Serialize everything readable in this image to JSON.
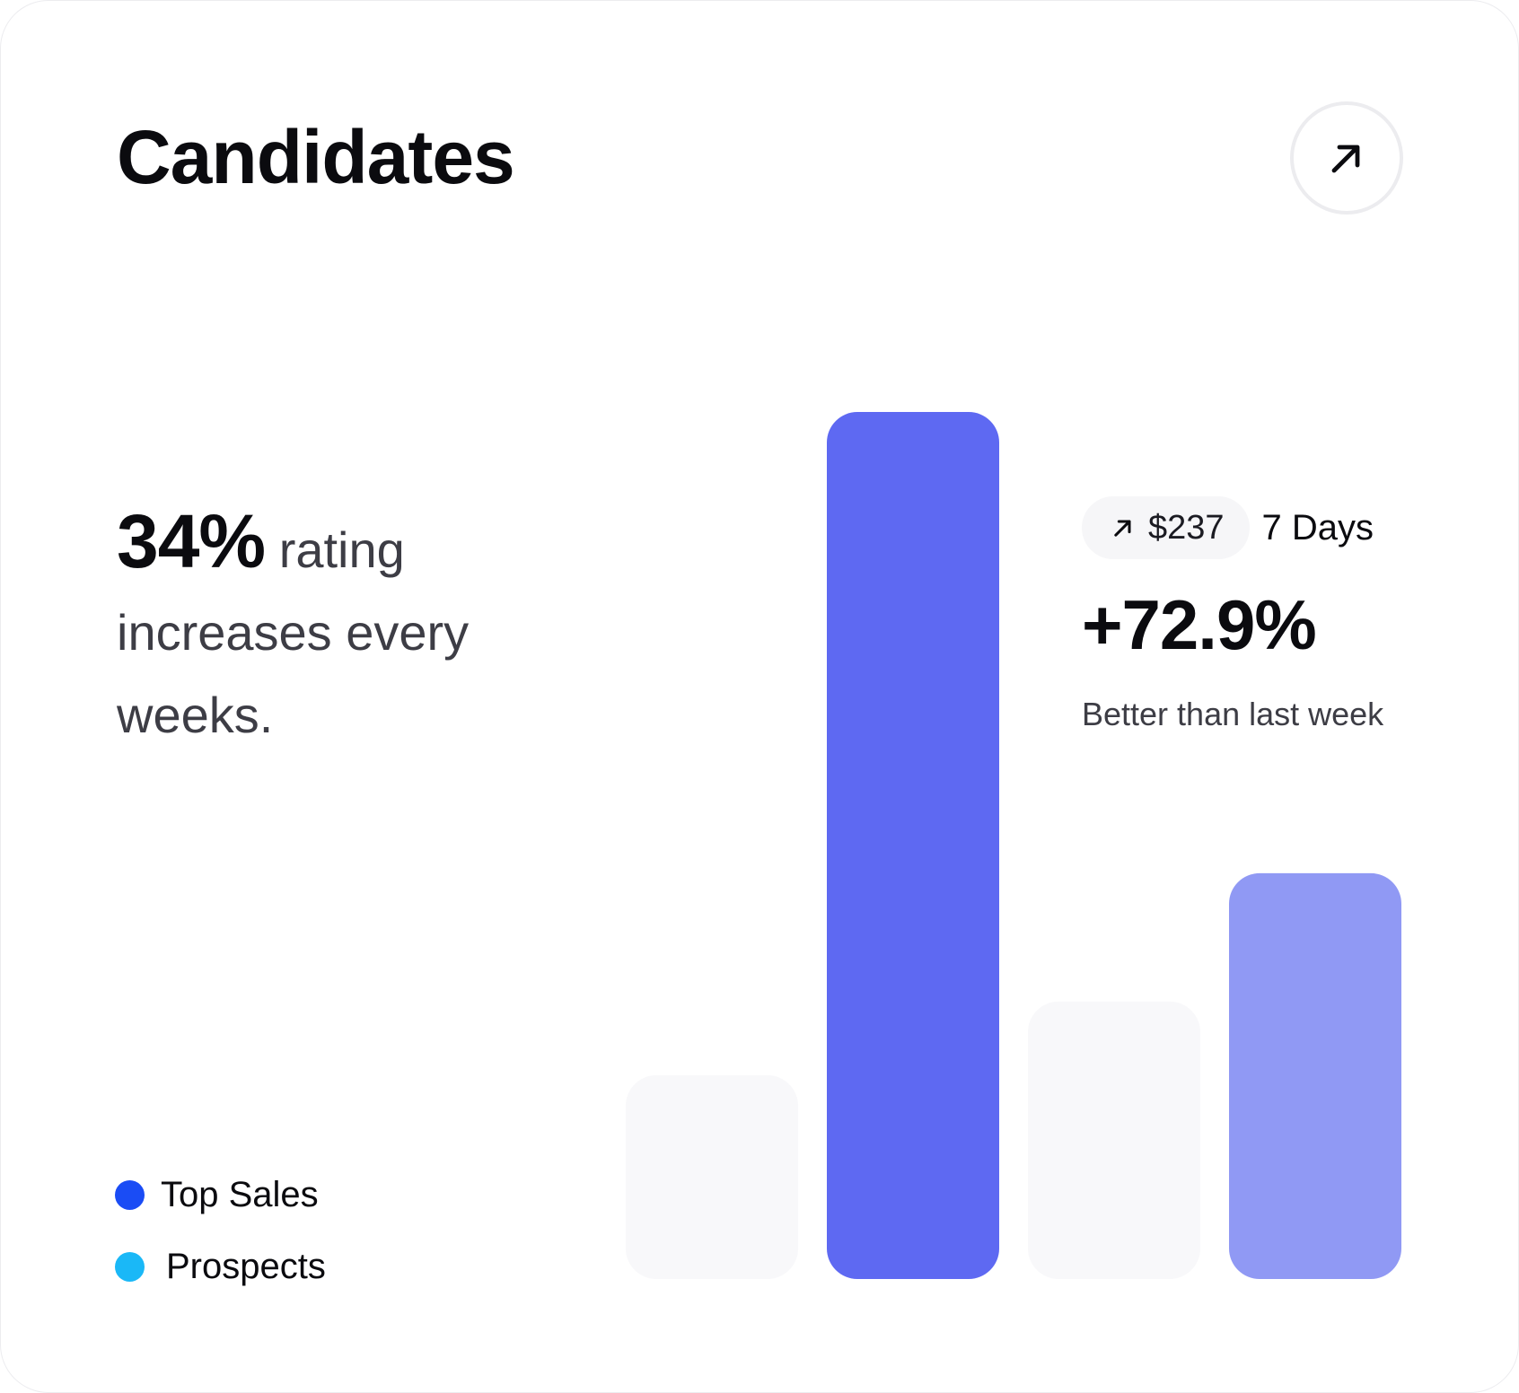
{
  "card": {
    "title": "Candidates",
    "open_button_icon": "arrow-up-right-icon"
  },
  "headline": {
    "percent": "34%",
    "rating_word": "rating",
    "line2": "increases every",
    "line3": "weeks."
  },
  "legend": {
    "items": [
      {
        "label": "Top Sales",
        "color": "#1a4cf5"
      },
      {
        "label": "Prospects",
        "color": "#1ab8f7"
      }
    ]
  },
  "stats": {
    "pill_icon": "arrow-up-right-icon",
    "amount": "$237",
    "period": "7 Days",
    "delta": "+72.9%",
    "caption": "Better than last week"
  },
  "chart_data": {
    "type": "bar",
    "values": [
      0.235,
      1.0,
      0.32,
      0.468
    ],
    "colors": [
      "#f8f8fa",
      "#5e69f2",
      "#f8f8fa",
      "#9099f4"
    ],
    "note_units": "relative height, max = 1",
    "title": "",
    "xlabel": "",
    "ylabel": ""
  }
}
